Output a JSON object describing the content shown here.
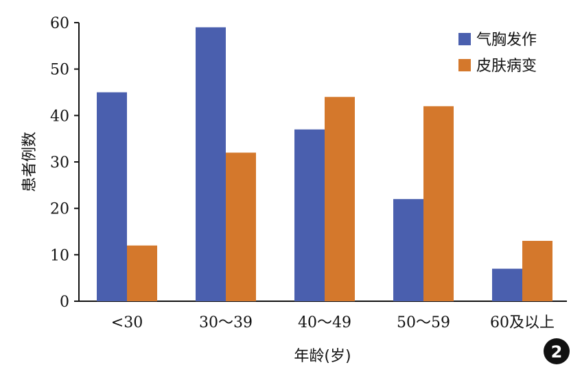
{
  "chart_data": {
    "type": "bar",
    "categories": [
      "<30",
      "30～39",
      "40～49",
      "50～59",
      "60及以上"
    ],
    "series": [
      {
        "name": "气胸发作",
        "values": [
          45,
          59,
          37,
          22,
          7
        ]
      },
      {
        "name": "皮肤病变",
        "values": [
          12,
          32,
          44,
          42,
          13
        ]
      }
    ],
    "xlabel": "年龄(岁)",
    "ylabel": "患者例数",
    "ylim": [
      0,
      60
    ],
    "yticks": [
      0,
      10,
      20,
      30,
      40,
      50,
      60
    ],
    "grid": false,
    "legend_position": "top-right",
    "colors": [
      "#4a5fae",
      "#d4782c"
    ],
    "figure_number": "2"
  }
}
